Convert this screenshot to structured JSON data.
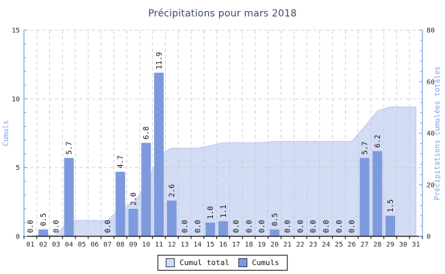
{
  "chart_data": {
    "type": "bar+area",
    "title": "Précipitations pour mars 2018",
    "categories": [
      "01",
      "02",
      "03",
      "04",
      "05",
      "06",
      "07",
      "08",
      "09",
      "10",
      "11",
      "12",
      "13",
      "14",
      "15",
      "16",
      "17",
      "18",
      "19",
      "20",
      "21",
      "22",
      "23",
      "24",
      "25",
      "26",
      "27",
      "28",
      "29",
      "30",
      "31"
    ],
    "series": [
      {
        "name": "Cumuls",
        "type": "bar",
        "axis": "left",
        "values": [
          0.0,
          0.5,
          0.0,
          5.7,
          null,
          null,
          0.0,
          4.7,
          2.0,
          6.8,
          11.9,
          2.6,
          0.0,
          0.0,
          1.0,
          1.1,
          0.0,
          0.0,
          0.0,
          0.5,
          0.0,
          0.0,
          0.0,
          0.0,
          0.0,
          0.0,
          5.7,
          6.2,
          1.5,
          null,
          null
        ]
      },
      {
        "name": "Cumul total",
        "type": "area",
        "axis": "right",
        "values": [
          0.0,
          0.5,
          0.5,
          6.2,
          6.2,
          6.2,
          6.2,
          10.9,
          12.9,
          19.7,
          31.6,
          34.2,
          34.2,
          34.2,
          35.2,
          36.3,
          36.3,
          36.3,
          36.3,
          36.8,
          36.8,
          36.8,
          36.8,
          36.8,
          36.8,
          36.8,
          42.5,
          48.7,
          50.2,
          50.2,
          50.2
        ]
      }
    ],
    "left_axis": {
      "label": "Cumuls",
      "range": [
        0,
        15
      ],
      "major_ticks": [
        0,
        5,
        10,
        15
      ],
      "minor_step": 1
    },
    "right_axis": {
      "label": "Précipitations cumulées totales",
      "range": [
        0,
        80
      ],
      "major_ticks": [
        0,
        20,
        40,
        60,
        80
      ],
      "minor_step": 4
    },
    "grid": "dashed",
    "legend_position": "bottom",
    "legend": [
      "Cumul total",
      "Cumuls"
    ]
  },
  "colors": {
    "bar_fill": "#7d9ade",
    "area_fill": "#d2dcf4",
    "area_stroke": "#b6c5ea",
    "axis_line": "#7aa0e8",
    "axis_title": "#7aa0e8",
    "grid_line": "#c9c9c9",
    "tick_label": "#2a2a2a",
    "bar_label": "#111111",
    "title": "#3e4b6e",
    "x_axis_line": "#000000",
    "legend_border": "#000000",
    "swatch_border": "#2a3550"
  }
}
